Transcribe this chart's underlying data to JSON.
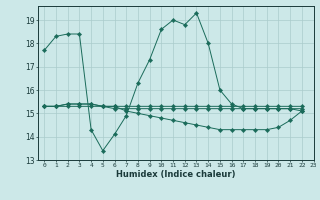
{
  "xlabel": "Humidex (Indice chaleur)",
  "background_color": "#cce8e8",
  "grid_color": "#aacccc",
  "line_color": "#1a6b5a",
  "xlim": [
    -0.5,
    23
  ],
  "ylim": [
    13,
    19.6
  ],
  "yticks": [
    13,
    14,
    15,
    16,
    17,
    18,
    19
  ],
  "xticks": [
    0,
    1,
    2,
    3,
    4,
    5,
    6,
    7,
    8,
    9,
    10,
    11,
    12,
    13,
    14,
    15,
    16,
    17,
    18,
    19,
    20,
    21,
    22,
    23
  ],
  "series": [
    {
      "x": [
        0,
        1,
        2,
        3,
        4,
        5,
        6,
        7,
        8,
        9,
        10,
        11,
        12,
        13,
        14,
        15,
        16,
        17,
        18,
        19,
        20,
        21,
        22
      ],
      "y": [
        17.7,
        18.3,
        18.4,
        18.4,
        14.3,
        13.4,
        14.1,
        14.9,
        16.3,
        17.3,
        18.6,
        19.0,
        18.8,
        19.3,
        18.0,
        16.0,
        15.4,
        15.2,
        15.2,
        15.2,
        15.2,
        15.2,
        15.1
      ]
    },
    {
      "x": [
        0,
        1,
        2,
        3,
        4,
        5,
        6,
        7,
        8,
        9,
        10,
        11,
        12,
        13,
        14,
        15,
        16,
        17,
        18,
        19,
        20,
        21,
        22
      ],
      "y": [
        15.3,
        15.3,
        15.3,
        15.3,
        15.3,
        15.3,
        15.3,
        15.1,
        15.0,
        14.9,
        14.8,
        14.7,
        14.6,
        14.5,
        14.4,
        14.3,
        14.3,
        14.3,
        14.3,
        14.3,
        14.4,
        14.7,
        15.1
      ]
    },
    {
      "x": [
        0,
        1,
        2,
        3,
        4,
        5,
        6,
        7,
        8,
        9,
        10,
        11,
        12,
        13,
        14,
        15,
        16,
        17,
        18,
        19,
        20,
        21,
        22
      ],
      "y": [
        15.3,
        15.3,
        15.4,
        15.4,
        15.4,
        15.3,
        15.3,
        15.3,
        15.3,
        15.3,
        15.3,
        15.3,
        15.3,
        15.3,
        15.3,
        15.3,
        15.3,
        15.3,
        15.3,
        15.3,
        15.3,
        15.3,
        15.3
      ]
    },
    {
      "x": [
        0,
        1,
        2,
        3,
        4,
        5,
        6,
        7,
        8,
        9,
        10,
        11,
        12,
        13,
        14,
        15,
        16,
        17,
        18,
        19,
        20,
        21,
        22
      ],
      "y": [
        15.3,
        15.3,
        15.4,
        15.4,
        15.4,
        15.3,
        15.2,
        15.2,
        15.2,
        15.2,
        15.2,
        15.2,
        15.2,
        15.2,
        15.2,
        15.2,
        15.2,
        15.2,
        15.2,
        15.2,
        15.2,
        15.2,
        15.2
      ]
    }
  ]
}
